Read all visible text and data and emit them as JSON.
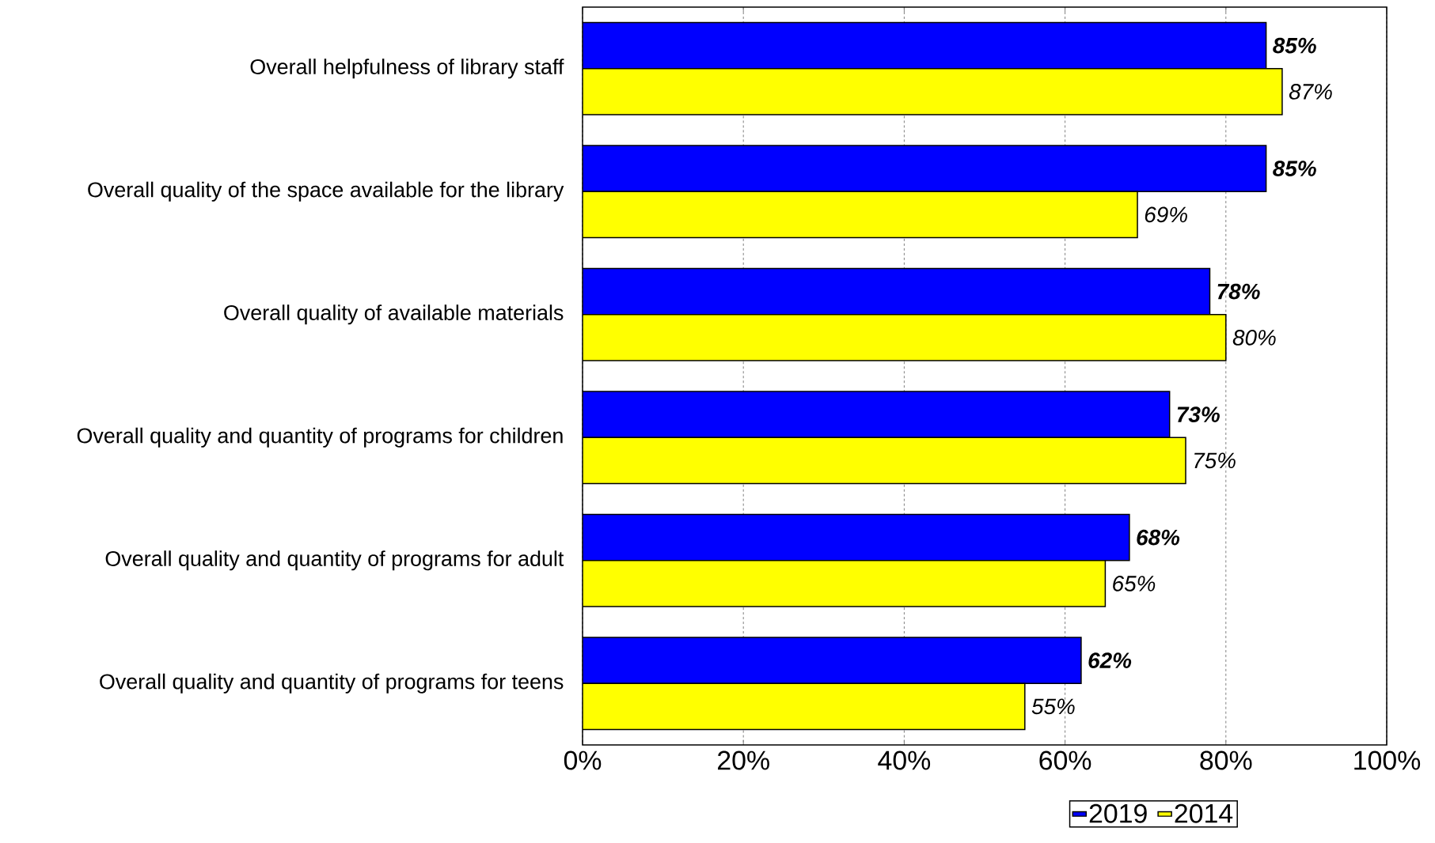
{
  "chart_data": {
    "type": "bar",
    "orientation": "horizontal",
    "categories": [
      "Overall helpfulness of library staff",
      "Overall quality of the space available for the library",
      "Overall quality of available materials",
      "Overall quality and quantity of programs for children",
      "Overall quality and quantity of programs for adult",
      "Overall quality and quantity of programs for teens"
    ],
    "series": [
      {
        "name": "2019",
        "color": "#0000ff",
        "values": [
          85,
          85,
          78,
          73,
          68,
          62
        ],
        "value_labels": [
          "85%",
          "85%",
          "78%",
          "73%",
          "68%",
          "62%"
        ]
      },
      {
        "name": "2014",
        "color": "#ffff00",
        "values": [
          87,
          69,
          80,
          75,
          65,
          55
        ],
        "value_labels": [
          "87%",
          "69%",
          "80%",
          "75%",
          "65%",
          "55%"
        ]
      }
    ],
    "xlim": [
      0,
      100
    ],
    "xticks": [
      {
        "value": 0,
        "label": "0%"
      },
      {
        "value": 20,
        "label": "20%"
      },
      {
        "value": 40,
        "label": "40%"
      },
      {
        "value": 60,
        "label": "60%"
      },
      {
        "value": 80,
        "label": "80%"
      },
      {
        "value": 100,
        "label": "100%"
      }
    ],
    "grid": "x",
    "legend": "bottom"
  }
}
